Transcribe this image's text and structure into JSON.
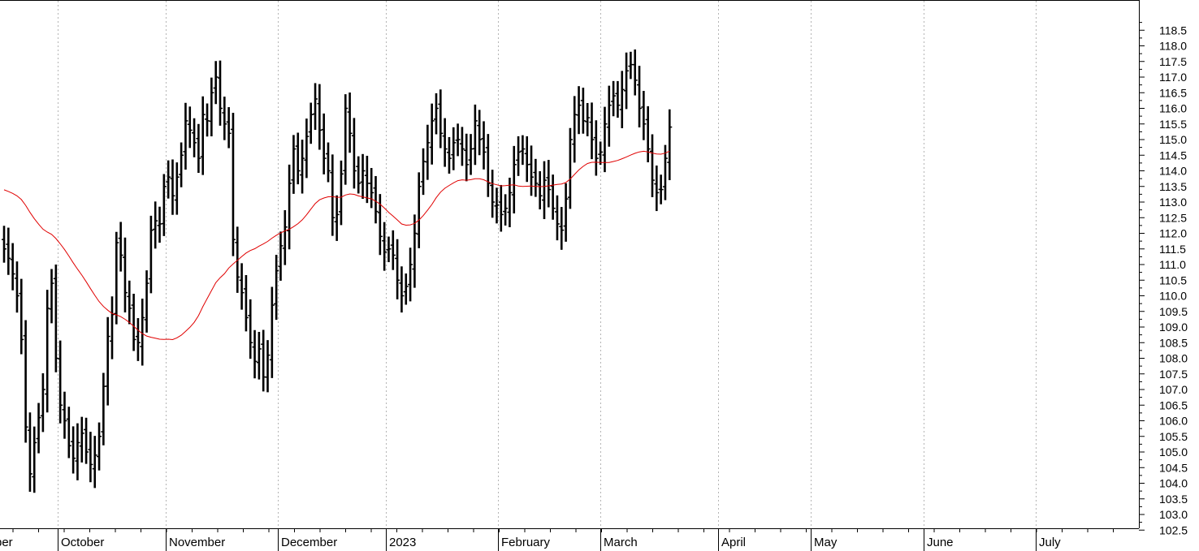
{
  "chart_data": {
    "type": "ohlc",
    "title": "",
    "xlabel": "",
    "ylabel": "",
    "ylim": [
      102.0,
      119.0
    ],
    "y_ticks": [
      "102.5",
      "103.0",
      "103.5",
      "104.0",
      "104.5",
      "105.0",
      "105.5",
      "106.0",
      "106.5",
      "107.0",
      "107.5",
      "108.0",
      "108.5",
      "109.0",
      "109.5",
      "110.0",
      "110.5",
      "111.0",
      "111.5",
      "112.0",
      "112.5",
      "113.0",
      "113.5",
      "114.0",
      "114.5",
      "115.0",
      "115.5",
      "116.0",
      "116.5",
      "117.0",
      "117.5",
      "118.0",
      "118.5"
    ],
    "x_axis_months": [
      {
        "label": "ber"
      },
      {
        "label": "October"
      },
      {
        "label": "November"
      },
      {
        "label": "December"
      },
      {
        "label": "2023"
      },
      {
        "label": "February"
      },
      {
        "label": "March"
      },
      {
        "label": "April"
      },
      {
        "label": "May"
      },
      {
        "label": "June"
      },
      {
        "label": "July"
      }
    ],
    "price_bars_color": "#000000",
    "moving_average_color": "#e00000",
    "grid": "vertical dotted at month boundaries",
    "price_path": [
      111.5,
      111.2,
      110.7,
      110.0,
      108.6,
      105.8,
      104.3,
      105.3,
      106.1,
      107.0,
      109.6,
      110.4,
      108.0,
      106.5,
      106.0,
      105.2,
      104.8,
      105.3,
      105.6,
      105.0,
      104.6,
      104.9,
      105.5,
      107.1,
      108.7,
      109.4,
      111.7,
      111.3,
      110.1,
      109.6,
      108.6,
      108.5,
      109.3,
      110.4,
      112.1,
      112.4,
      112.3,
      113.5,
      113.8,
      113.2,
      113.8,
      114.5,
      115.6,
      115.3,
      114.9,
      114.4,
      115.8,
      115.6,
      116.5,
      117.0,
      116.0,
      115.5,
      115.2,
      111.8,
      110.6,
      110.1,
      109.3,
      108.5,
      107.9,
      108.3,
      107.4,
      108.1,
      109.7,
      110.8,
      111.6,
      112.2,
      113.6,
      114.7,
      114.0,
      114.4,
      115.1,
      115.8,
      116.3,
      115.3,
      114.4,
      114.0,
      112.5,
      112.6,
      113.9,
      116.0,
      115.2,
      114.0,
      113.6,
      114.0,
      113.6,
      113.3,
      112.7,
      111.9,
      111.4,
      111.5,
      111.3,
      110.5,
      110.0,
      110.3,
      111.0,
      112.0,
      113.5,
      114.3,
      114.9,
      115.6,
      116.0,
      115.2,
      114.7,
      114.4,
      114.9,
      115.0,
      114.7,
      114.2,
      114.7,
      115.6,
      115.0,
      114.6,
      113.6,
      113.0,
      112.9,
      112.6,
      112.8,
      113.3,
      114.2,
      114.6,
      114.7,
      114.2,
      113.8,
      113.6,
      113.2,
      113.7,
      113.4,
      112.8,
      112.3,
      112.1,
      113.1,
      115.0,
      115.8,
      116.1,
      115.6,
      115.7,
      115.0,
      114.4,
      114.6,
      115.5,
      116.1,
      116.4,
      116.1,
      116.6,
      117.2,
      117.4,
      116.9,
      116.0,
      115.5,
      114.7,
      113.7,
      113.3,
      113.4,
      114.4,
      115.4
    ]
  }
}
